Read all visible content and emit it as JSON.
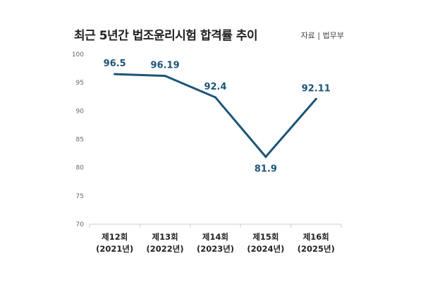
{
  "header": {
    "title": "최근 5년간 법조윤리시험 합격률 추이",
    "source": "자료 | 법무부"
  },
  "chart_data": {
    "type": "line",
    "title": "최근 5년간 법조윤리시험 합격률 추이",
    "xlabel": "",
    "ylabel": "",
    "categories": [
      [
        "제12회",
        "(2021년)"
      ],
      [
        "제13회",
        "(2022년)"
      ],
      [
        "제14회",
        "(2023년)"
      ],
      [
        "제15회",
        "(2024년)"
      ],
      [
        "제16회",
        "(2025년)"
      ]
    ],
    "series": [
      {
        "values": [
          96.5,
          96.19,
          92.4,
          81.9,
          92.11
        ]
      }
    ],
    "data_labels": [
      "96.5",
      "96.19",
      "92.4",
      "81.9",
      "92.11"
    ],
    "label_positions": [
      "above",
      "above",
      "above",
      "below",
      "above"
    ],
    "ylim": [
      70,
      100
    ],
    "yticks": [
      100,
      95,
      90,
      85,
      80,
      75,
      70
    ],
    "grid": false,
    "legend": "none",
    "line_color": "#1d5577",
    "axis_color": "#cccccc"
  }
}
